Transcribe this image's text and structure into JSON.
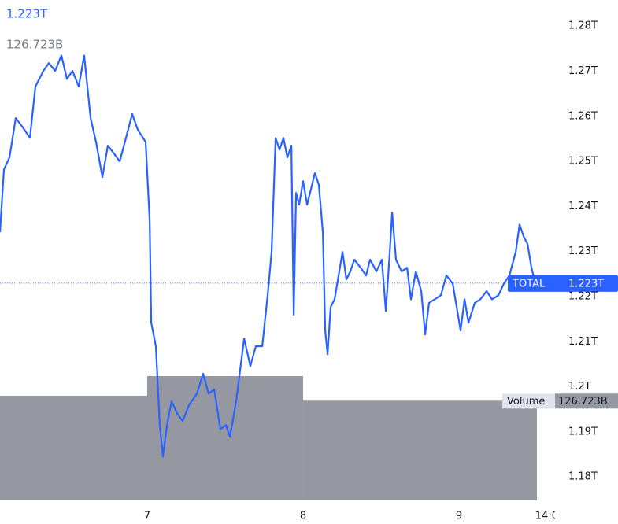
{
  "chart_data": {
    "type": "line",
    "series": [
      {
        "name": "TOTAL",
        "color": "#2962ff",
        "last_label": "1.223T",
        "x": [
          6.056,
          6.081,
          6.117,
          6.157,
          6.197,
          6.248,
          6.283,
          6.334,
          6.369,
          6.41,
          6.45,
          6.485,
          6.521,
          6.561,
          6.596,
          6.637,
          6.672,
          6.713,
          6.748,
          6.788,
          6.824,
          6.864,
          6.904,
          6.94,
          6.99,
          7.016,
          7.026,
          7.056,
          7.081,
          7.101,
          7.127,
          7.157,
          7.192,
          7.228,
          7.268,
          7.319,
          7.359,
          7.394,
          7.43,
          7.47,
          7.505,
          7.531,
          7.571,
          7.596,
          7.622,
          7.662,
          7.697,
          7.738,
          7.773,
          7.798,
          7.824,
          7.849,
          7.874,
          7.899,
          7.925,
          7.94,
          7.955,
          7.975,
          8.0,
          8.026,
          8.051,
          8.076,
          8.101,
          8.127,
          8.142,
          8.157,
          8.177,
          8.202,
          8.228,
          8.253,
          8.278,
          8.303,
          8.329,
          8.369,
          8.404,
          8.43,
          8.47,
          8.505,
          8.531,
          8.556,
          8.571,
          8.596,
          8.632,
          8.667,
          8.692,
          8.723,
          8.758,
          8.783,
          8.808,
          8.844,
          8.884,
          8.919,
          8.96,
          9.01,
          9.036,
          9.061,
          9.101,
          9.137,
          9.177,
          9.212,
          9.253,
          9.288,
          9.323,
          9.364,
          9.389,
          9.414,
          9.44,
          9.465,
          9.49
        ],
        "values": [
          1.2343,
          1.2482,
          1.2509,
          1.2596,
          1.2578,
          1.2552,
          1.2666,
          1.2701,
          1.2718,
          1.2701,
          1.2735,
          1.2683,
          1.2701,
          1.2666,
          1.2735,
          1.2596,
          1.2543,
          1.2465,
          1.2535,
          1.2517,
          1.25,
          1.2552,
          1.2605,
          1.257,
          1.2543,
          1.2369,
          1.2142,
          1.209,
          1.1915,
          1.1845,
          1.1915,
          1.1968,
          1.1941,
          1.1924,
          1.1959,
          1.1985,
          1.2029,
          1.1985,
          1.1994,
          1.1906,
          1.1915,
          1.1889,
          1.1968,
          1.2037,
          1.2107,
          1.2046,
          1.209,
          1.209,
          1.2203,
          1.2299,
          1.2552,
          1.2526,
          1.2552,
          1.2509,
          1.2535,
          1.216,
          1.243,
          1.2404,
          1.2456,
          1.2404,
          1.2439,
          1.2474,
          1.2448,
          1.2343,
          1.2125,
          1.2072,
          1.2177,
          1.2194,
          1.2247,
          1.2299,
          1.2238,
          1.2256,
          1.2282,
          1.2264,
          1.2247,
          1.2282,
          1.2256,
          1.2282,
          1.2168,
          1.2299,
          1.2386,
          1.2282,
          1.2256,
          1.2264,
          1.2194,
          1.2256,
          1.2212,
          1.2116,
          1.2186,
          1.2194,
          1.2203,
          1.2247,
          1.2229,
          1.2125,
          1.2194,
          1.2142,
          1.2186,
          1.2194,
          1.2212,
          1.2194,
          1.2203,
          1.2229,
          1.2247,
          1.2299,
          1.236,
          1.2334,
          1.2317,
          1.2264,
          1.223
        ]
      }
    ],
    "volume": {
      "name": "Volume",
      "color": "#9598a1",
      "bins": [
        6,
        7,
        8,
        9.5
      ],
      "values": [
        133,
        158,
        126.723
      ],
      "value_labels": [
        null,
        null,
        "126.723B"
      ],
      "ylim": [
        0,
        300
      ]
    },
    "xlim": [
      6.056,
      9.616
    ],
    "xticks": [
      7,
      8,
      9,
      {
        "value": 9.5833,
        "label": "14:00"
      }
    ],
    "ylim": [
      1.1748,
      1.2858
    ],
    "yticks": [
      {
        "value": 1.28,
        "label": "1.28T"
      },
      {
        "value": 1.27,
        "label": "1.27T"
      },
      {
        "value": 1.26,
        "label": "1.26T"
      },
      {
        "value": 1.25,
        "label": "1.25T"
      },
      {
        "value": 1.24,
        "label": "1.24T"
      },
      {
        "value": 1.23,
        "label": "1.23T"
      },
      {
        "value": 1.22,
        "label": "1.22T"
      },
      {
        "value": 1.21,
        "label": "1.21T"
      },
      {
        "value": 1.2,
        "label": "1.2T"
      },
      {
        "value": 1.19,
        "label": "1.19T"
      },
      {
        "value": 1.18,
        "label": "1.18T"
      }
    ],
    "grid": false
  }
}
